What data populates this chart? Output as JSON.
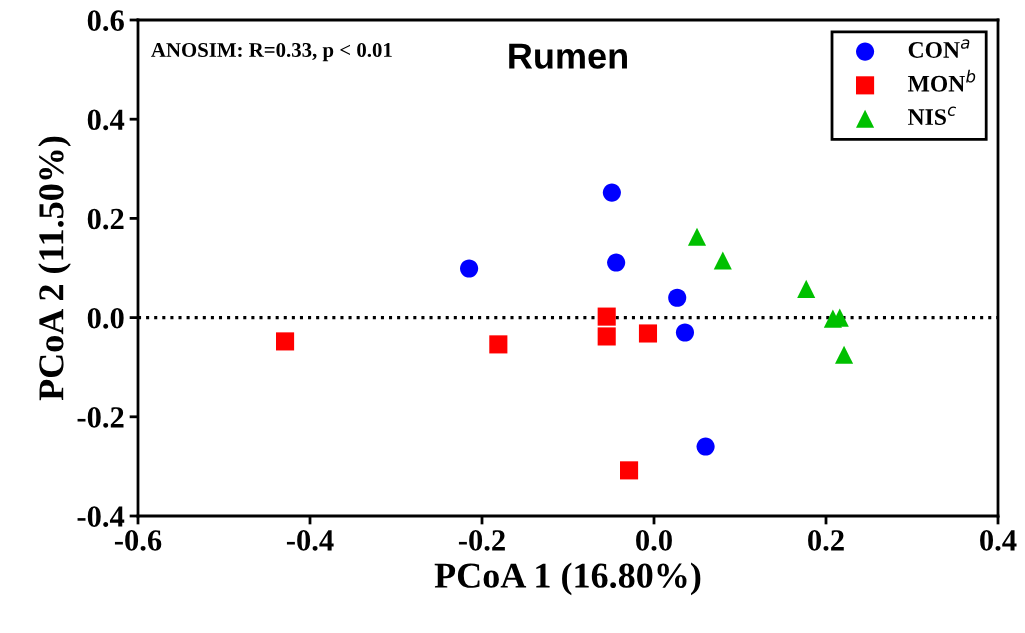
{
  "chart_data": {
    "type": "scatter",
    "title": "Rumen",
    "xlabel": "PCoA 1 (16.80%)",
    "ylabel": "PCoA 2 (11.50%)",
    "annotations": [
      "ANOSIM: R=0.33, p < 0.01"
    ],
    "xlim": [
      -0.6,
      0.4
    ],
    "xticks": [
      {
        "value": -0.6,
        "label": "-0.6"
      },
      {
        "value": -0.4,
        "label": "-0.4"
      },
      {
        "value": -0.2,
        "label": "-0.2"
      },
      {
        "value": 0.0,
        "label": "0.0"
      },
      {
        "value": 0.2,
        "label": "0.2"
      },
      {
        "value": 0.4,
        "label": "0.4"
      }
    ],
    "ylim": [
      -0.4,
      0.6
    ],
    "yticks": [
      {
        "value": -0.4,
        "label": "-0.4"
      },
      {
        "value": -0.2,
        "label": "-0.2"
      },
      {
        "value": 0.0,
        "label": "0.0"
      },
      {
        "value": 0.2,
        "label": "0.2"
      },
      {
        "value": 0.4,
        "label": "0.4"
      },
      {
        "value": 0.6,
        "label": "0.6"
      }
    ],
    "ref_lines": [
      {
        "axis": "y",
        "value": 0,
        "label": null,
        "color": "#000000",
        "line_style": "dotted"
      }
    ],
    "legend": "top right",
    "grid": false,
    "series": [
      {
        "name": "CON$^{a}$",
        "color": "#0000ff",
        "marker": "circle",
        "x": [
          -0.049,
          -0.215,
          -0.044,
          0.027,
          0.036,
          0.06
        ],
        "values": [
          0.252,
          0.099,
          0.111,
          0.04,
          -0.03,
          -0.26
        ]
      },
      {
        "name": "MON$^{b}$",
        "color": "#ff0000",
        "marker": "square",
        "x": [
          -0.429,
          -0.181,
          -0.055,
          -0.055,
          -0.007,
          -0.029
        ],
        "values": [
          -0.048,
          -0.054,
          0.002,
          -0.038,
          -0.032,
          -0.308
        ]
      },
      {
        "name": "NIS$^{c}$",
        "color": "#00c000",
        "marker": "triangle",
        "x": [
          0.05,
          0.08,
          0.177,
          0.208,
          0.216,
          0.221
        ],
        "values": [
          0.163,
          0.115,
          0.058,
          -0.002,
          0.0,
          -0.075
        ]
      }
    ]
  }
}
